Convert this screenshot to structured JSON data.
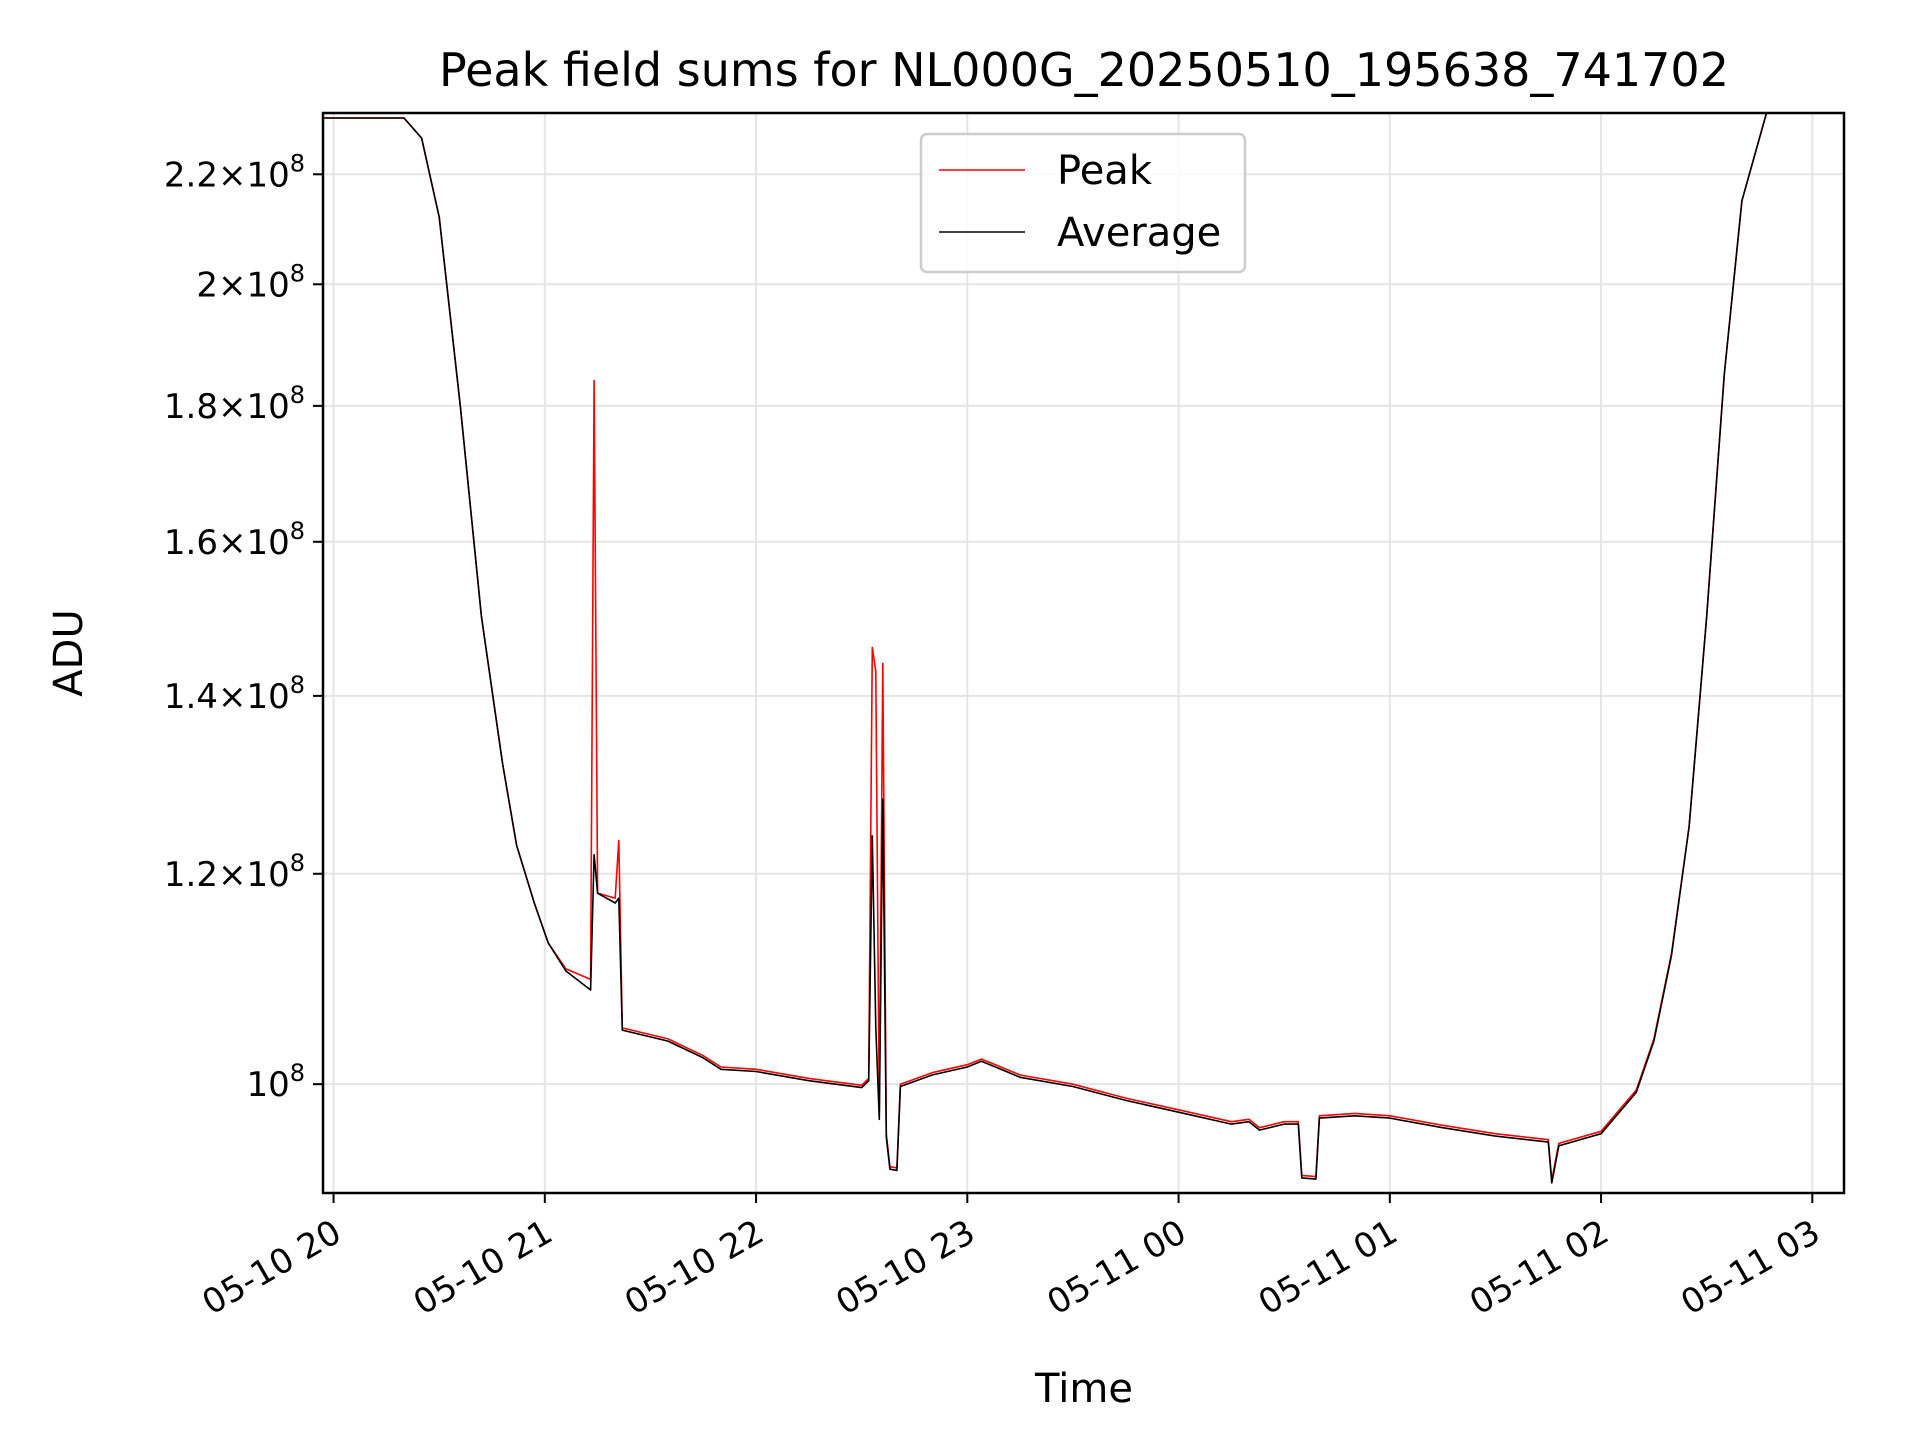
{
  "chart_data": {
    "type": "line",
    "title": "Peak field sums for NL000G_20250510_195638_741702",
    "xlabel": "Time",
    "ylabel": "ADU",
    "yscale": "log",
    "xlim": [
      "2025-05-10 19:57",
      "2025-05-11 03:09"
    ],
    "ylim": [
      91000000,
      232000000
    ],
    "grid": true,
    "legend_position": "top-center",
    "x_ticks": [
      {
        "t": "2025-05-10 20:00",
        "label": "05-10 20"
      },
      {
        "t": "2025-05-10 21:00",
        "label": "05-10 21"
      },
      {
        "t": "2025-05-10 22:00",
        "label": "05-10 22"
      },
      {
        "t": "2025-05-10 23:00",
        "label": "05-10 23"
      },
      {
        "t": "2025-05-11 00:00",
        "label": "05-11 00"
      },
      {
        "t": "2025-05-11 01:00",
        "label": "05-11 01"
      },
      {
        "t": "2025-05-11 02:00",
        "label": "05-11 02"
      },
      {
        "t": "2025-05-11 03:00",
        "label": "05-11 03"
      }
    ],
    "y_ticks": [
      {
        "v": 100000000,
        "mant": "",
        "exp": "8"
      },
      {
        "v": 120000000,
        "mant": "1.2",
        "exp": "8"
      },
      {
        "v": 140000000,
        "mant": "1.4",
        "exp": "8"
      },
      {
        "v": 160000000,
        "mant": "1.6",
        "exp": "8"
      },
      {
        "v": 180000000,
        "mant": "1.8",
        "exp": "8"
      },
      {
        "v": 200000000,
        "mant": "2",
        "exp": "8"
      },
      {
        "v": 220000000,
        "mant": "2.2",
        "exp": "8"
      }
    ],
    "series": [
      {
        "name": "Peak",
        "color": "#ff0000",
        "points": [
          [
            "2025-05-10 19:57",
            231000000
          ],
          [
            "2025-05-10 20:20",
            231000000
          ],
          [
            "2025-05-10 20:25",
            227000000
          ],
          [
            "2025-05-10 20:30",
            212000000
          ],
          [
            "2025-05-10 20:36",
            180000000
          ],
          [
            "2025-05-10 20:42",
            150000000
          ],
          [
            "2025-05-10 20:48",
            132000000
          ],
          [
            "2025-05-10 20:52",
            123000000
          ],
          [
            "2025-05-10 20:57",
            117000000
          ],
          [
            "2025-05-10 21:01",
            113000000
          ],
          [
            "2025-05-10 21:06",
            110500000
          ],
          [
            "2025-05-10 21:13",
            109500000
          ],
          [
            "2025-05-10 21:14",
            184000000
          ],
          [
            "2025-05-10 21:15",
            118000000
          ],
          [
            "2025-05-10 21:20",
            117500000
          ],
          [
            "2025-05-10 21:21",
            123500000
          ],
          [
            "2025-05-10 21:22",
            105000000
          ],
          [
            "2025-05-10 21:35",
            104000000
          ],
          [
            "2025-05-10 21:45",
            102500000
          ],
          [
            "2025-05-10 21:50",
            101500000
          ],
          [
            "2025-05-10 22:00",
            101300000
          ],
          [
            "2025-05-10 22:15",
            100500000
          ],
          [
            "2025-05-10 22:30",
            99900000
          ],
          [
            "2025-05-10 22:32",
            100500000
          ],
          [
            "2025-05-10 22:33",
            146000000
          ],
          [
            "2025-05-10 22:34",
            143000000
          ],
          [
            "2025-05-10 22:35",
            97500000
          ],
          [
            "2025-05-10 22:36",
            144000000
          ],
          [
            "2025-05-10 22:37",
            95800000
          ],
          [
            "2025-05-10 22:38",
            93100000
          ],
          [
            "2025-05-10 22:40",
            93000000
          ],
          [
            "2025-05-10 22:41",
            100000000
          ],
          [
            "2025-05-10 22:50",
            101000000
          ],
          [
            "2025-05-10 23:00",
            101700000
          ],
          [
            "2025-05-10 23:04",
            102200000
          ],
          [
            "2025-05-10 23:08",
            101700000
          ],
          [
            "2025-05-10 23:15",
            100800000
          ],
          [
            "2025-05-10 23:30",
            100000000
          ],
          [
            "2025-05-10 23:45",
            98800000
          ],
          [
            "2025-05-11 00:00",
            97800000
          ],
          [
            "2025-05-11 00:15",
            96800000
          ],
          [
            "2025-05-11 00:20",
            97000000
          ],
          [
            "2025-05-11 00:23",
            96300000
          ],
          [
            "2025-05-11 00:30",
            96800000
          ],
          [
            "2025-05-11 00:34",
            96800000
          ],
          [
            "2025-05-11 00:35",
            92400000
          ],
          [
            "2025-05-11 00:39",
            92300000
          ],
          [
            "2025-05-11 00:40",
            97300000
          ],
          [
            "2025-05-11 00:50",
            97500000
          ],
          [
            "2025-05-11 01:00",
            97300000
          ],
          [
            "2025-05-11 01:15",
            96500000
          ],
          [
            "2025-05-11 01:30",
            95800000
          ],
          [
            "2025-05-11 01:45",
            95300000
          ],
          [
            "2025-05-11 01:46",
            92000000
          ],
          [
            "2025-05-11 01:48",
            95000000
          ],
          [
            "2025-05-11 02:00",
            96000000
          ],
          [
            "2025-05-11 02:10",
            99500000
          ],
          [
            "2025-05-11 02:15",
            104000000
          ],
          [
            "2025-05-11 02:20",
            112000000
          ],
          [
            "2025-05-11 02:25",
            125000000
          ],
          [
            "2025-05-11 02:30",
            150000000
          ],
          [
            "2025-05-11 02:35",
            185000000
          ],
          [
            "2025-05-11 02:40",
            215000000
          ],
          [
            "2025-05-11 02:47",
            232000000
          ]
        ]
      },
      {
        "name": "Average",
        "color": "#000000",
        "points": [
          [
            "2025-05-10 19:57",
            231000000
          ],
          [
            "2025-05-10 20:20",
            231000000
          ],
          [
            "2025-05-10 20:25",
            227000000
          ],
          [
            "2025-05-10 20:30",
            212000000
          ],
          [
            "2025-05-10 20:36",
            180000000
          ],
          [
            "2025-05-10 20:42",
            150000000
          ],
          [
            "2025-05-10 20:48",
            132000000
          ],
          [
            "2025-05-10 20:52",
            123000000
          ],
          [
            "2025-05-10 20:57",
            117000000
          ],
          [
            "2025-05-10 21:01",
            113000000
          ],
          [
            "2025-05-10 21:06",
            110300000
          ],
          [
            "2025-05-10 21:13",
            108500000
          ],
          [
            "2025-05-10 21:14",
            122000000
          ],
          [
            "2025-05-10 21:15",
            118000000
          ],
          [
            "2025-05-10 21:20",
            117000000
          ],
          [
            "2025-05-10 21:21",
            117500000
          ],
          [
            "2025-05-10 21:22",
            104800000
          ],
          [
            "2025-05-10 21:35",
            103800000
          ],
          [
            "2025-05-10 21:45",
            102300000
          ],
          [
            "2025-05-10 21:50",
            101300000
          ],
          [
            "2025-05-10 22:00",
            101100000
          ],
          [
            "2025-05-10 22:15",
            100300000
          ],
          [
            "2025-05-10 22:30",
            99700000
          ],
          [
            "2025-05-10 22:32",
            100300000
          ],
          [
            "2025-05-10 22:33",
            124000000
          ],
          [
            "2025-05-10 22:34",
            105000000
          ],
          [
            "2025-05-10 22:35",
            97000000
          ],
          [
            "2025-05-10 22:36",
            128000000
          ],
          [
            "2025-05-10 22:37",
            95500000
          ],
          [
            "2025-05-10 22:38",
            92900000
          ],
          [
            "2025-05-10 22:40",
            92800000
          ],
          [
            "2025-05-10 22:41",
            99800000
          ],
          [
            "2025-05-10 22:50",
            100800000
          ],
          [
            "2025-05-10 23:00",
            101500000
          ],
          [
            "2025-05-10 23:04",
            102000000
          ],
          [
            "2025-05-10 23:08",
            101500000
          ],
          [
            "2025-05-10 23:15",
            100600000
          ],
          [
            "2025-05-10 23:30",
            99800000
          ],
          [
            "2025-05-10 23:45",
            98600000
          ],
          [
            "2025-05-11 00:00",
            97600000
          ],
          [
            "2025-05-11 00:15",
            96600000
          ],
          [
            "2025-05-11 00:20",
            96800000
          ],
          [
            "2025-05-11 00:23",
            96100000
          ],
          [
            "2025-05-11 00:30",
            96600000
          ],
          [
            "2025-05-11 00:34",
            96600000
          ],
          [
            "2025-05-11 00:35",
            92200000
          ],
          [
            "2025-05-11 00:39",
            92100000
          ],
          [
            "2025-05-11 00:40",
            97100000
          ],
          [
            "2025-05-11 00:50",
            97300000
          ],
          [
            "2025-05-11 01:00",
            97100000
          ],
          [
            "2025-05-11 01:15",
            96300000
          ],
          [
            "2025-05-11 01:30",
            95600000
          ],
          [
            "2025-05-11 01:45",
            95100000
          ],
          [
            "2025-05-11 01:46",
            91800000
          ],
          [
            "2025-05-11 01:48",
            94800000
          ],
          [
            "2025-05-11 02:00",
            95800000
          ],
          [
            "2025-05-11 02:10",
            99300000
          ],
          [
            "2025-05-11 02:15",
            103800000
          ],
          [
            "2025-05-11 02:20",
            111800000
          ],
          [
            "2025-05-11 02:25",
            125000000
          ],
          [
            "2025-05-11 02:30",
            150000000
          ],
          [
            "2025-05-11 02:35",
            185000000
          ],
          [
            "2025-05-11 02:40",
            215000000
          ],
          [
            "2025-05-11 02:47",
            232000000
          ]
        ]
      }
    ]
  }
}
